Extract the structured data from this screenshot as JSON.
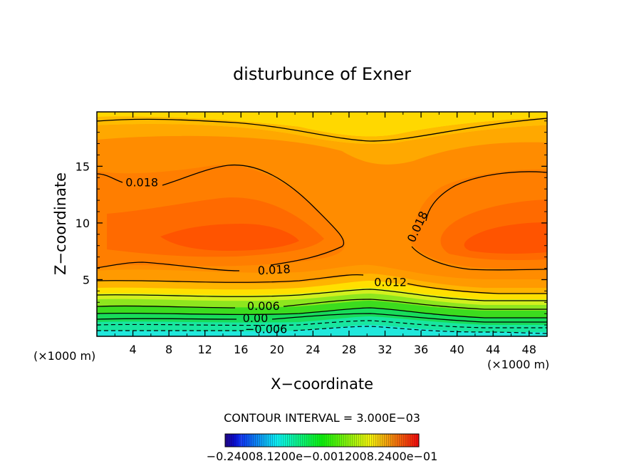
{
  "chart_data": {
    "type": "contour",
    "title": "disturbunce of Exner",
    "xlabel": "X−coordinate",
    "ylabel": "Z−coordinate",
    "x_unit_left": "(×1000 m)",
    "x_unit_right": "(×1000 m)",
    "xlim": [
      0,
      50
    ],
    "ylim": [
      0,
      19.8
    ],
    "x_ticks": [
      4,
      8,
      12,
      16,
      20,
      24,
      28,
      32,
      36,
      40,
      44,
      48
    ],
    "x_tick_labels": [
      "4",
      "8",
      "12",
      "16",
      "20",
      "24",
      "28",
      "32",
      "36",
      "40",
      "44",
      "48"
    ],
    "y_ticks": [
      5,
      10,
      15
    ],
    "y_tick_labels": [
      "5",
      "10",
      "15"
    ],
    "contour_interval_text": "CONTOUR INTERVAL = 3.000E−03",
    "contour_labels": [
      {
        "text": "0.018",
        "x": 5,
        "z": 13.6
      },
      {
        "text": "0.018",
        "x": 19.7,
        "z": 5.9
      },
      {
        "text": "0.018",
        "x": 36.0,
        "z": 9.9
      },
      {
        "text": "0.012",
        "x": 32.6,
        "z": 4.8
      },
      {
        "text": "0.006",
        "x": 18.5,
        "z": 2.7
      },
      {
        "text": "0.00",
        "x": 17.6,
        "z": 1.65
      },
      {
        "text": "−0.006",
        "x": 18.8,
        "z": 0.65
      }
    ],
    "colorbar": {
      "labels_text": "−0.24008.1200e−0.0012008.2400e−01",
      "range": [
        -0.024,
        0.024
      ]
    },
    "colors": {
      "background": "#ff8a00",
      "levels": [
        "#21e8dc",
        "#18e6a0",
        "#18dc5a",
        "#3cdc1e",
        "#8ee61e",
        "#d2f01e",
        "#ffe400",
        "#ffc400",
        "#ffa800",
        "#ff9200",
        "#ff7e00",
        "#ff6a00",
        "#ff5400",
        "#ff4400"
      ]
    }
  }
}
